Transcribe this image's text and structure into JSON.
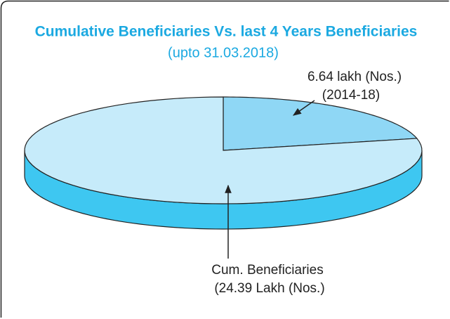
{
  "chart_data": {
    "type": "pie",
    "title": "Cumulative Beneficiaries Vs. last 4 Years Beneficiaries",
    "subtitle": "(upto 31.03.2018)",
    "categories": [
      "(2014-18)",
      "Cum. Beneficiaries"
    ],
    "values": [
      6.64,
      24.39
    ],
    "value_labels": [
      "6.64 lakh (Nos.)",
      "(24.39 Lakh (Nos.)"
    ],
    "colors": [
      "#8fd7f5",
      "#c6ebfa"
    ],
    "side_color": "#3ec7f1"
  }
}
